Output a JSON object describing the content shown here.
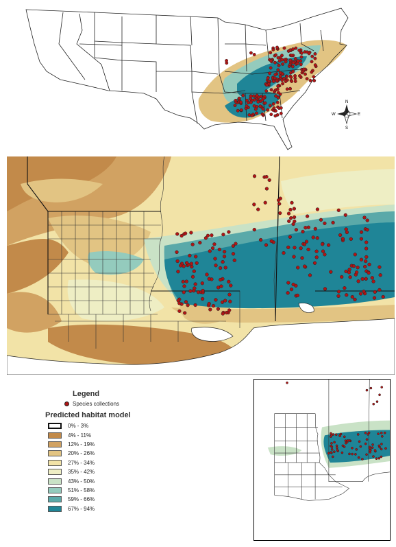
{
  "legend": {
    "title": "Legend",
    "points_label": "Species collections",
    "model_title": "Predicted habitat model",
    "bins": [
      {
        "label": "0% - 3%",
        "color": "#ffffff"
      },
      {
        "label": "4% - 11%",
        "color": "#c28a4a"
      },
      {
        "label": "12% - 19%",
        "color": "#d1a262"
      },
      {
        "label": "20% - 26%",
        "color": "#e2c483"
      },
      {
        "label": "27% - 34%",
        "color": "#f2e3a7"
      },
      {
        "label": "35% - 42%",
        "color": "#eeeec4"
      },
      {
        "label": "43% - 50%",
        "color": "#c9e2c6"
      },
      {
        "label": "51% - 58%",
        "color": "#94cbbd"
      },
      {
        "label": "59% - 66%",
        "color": "#5aa9a9"
      },
      {
        "label": "67% - 94%",
        "color": "#1f8597"
      }
    ]
  },
  "north_arrow": {
    "n": "N",
    "s": "S",
    "e": "E",
    "w": "W"
  },
  "colors": {
    "collection_point": "#b01515",
    "land_white": "#ffffff",
    "border": "#222222"
  }
}
